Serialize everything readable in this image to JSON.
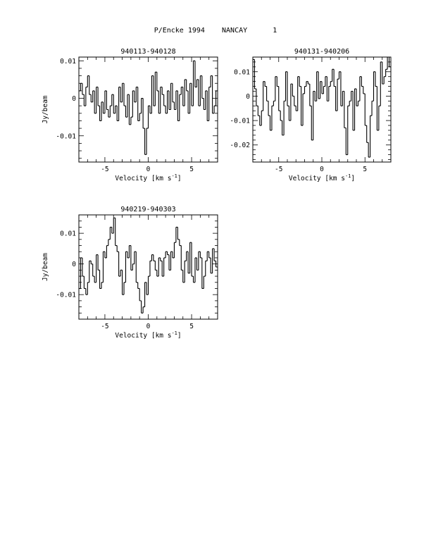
{
  "page": {
    "title": "P/Encke 1994    NANCAY      1"
  },
  "chart_data": [
    {
      "type": "line",
      "title": "940113-940128",
      "xlabel": "Velocity [km s",
      "xlabel_sup": "-1",
      "xlabel_end": "]",
      "ylabel": "Jy/beam",
      "xlim": [
        -8,
        8
      ],
      "ylim": [
        -0.017,
        0.011
      ],
      "x_ticks": [
        {
          "value": -5,
          "label": "-5"
        },
        {
          "value": 0,
          "label": "0"
        },
        {
          "value": 5,
          "label": "5"
        }
      ],
      "y_ticks": [
        {
          "value": 0.01,
          "label": "0.01"
        },
        {
          "value": 0,
          "label": "0"
        },
        {
          "value": -0.01,
          "label": "-0.01"
        }
      ],
      "x": [
        -8,
        -7.8,
        -7.6,
        -7.4,
        -7.2,
        -7,
        -6.8,
        -6.6,
        -6.4,
        -6.2,
        -6,
        -5.8,
        -5.6,
        -5.4,
        -5.2,
        -5,
        -4.8,
        -4.6,
        -4.4,
        -4.2,
        -4,
        -3.8,
        -3.6,
        -3.4,
        -3.2,
        -3,
        -2.8,
        -2.6,
        -2.4,
        -2.2,
        -2,
        -1.8,
        -1.6,
        -1.4,
        -1.2,
        -1,
        -0.8,
        -0.6,
        -0.4,
        -0.2,
        0,
        0.2,
        0.4,
        0.6,
        0.8,
        1,
        1.2,
        1.4,
        1.6,
        1.8,
        2,
        2.2,
        2.4,
        2.6,
        2.8,
        3,
        3.2,
        3.4,
        3.6,
        3.8,
        4,
        4.2,
        4.4,
        4.6,
        4.8,
        5,
        5.2,
        5.4,
        5.6,
        5.8,
        6,
        6.2,
        6.4,
        6.6,
        6.8,
        7,
        7.2,
        7.4,
        7.6,
        7.8
      ],
      "values": [
        0.002,
        0.004,
        0.001,
        -0.002,
        0.003,
        0.006,
        0.001,
        -0.001,
        0.002,
        -0.004,
        0.003,
        -0.002,
        -0.006,
        -0.001,
        -0.004,
        0.002,
        -0.003,
        -0.005,
        -0.002,
        0.001,
        -0.004,
        -0.002,
        -0.006,
        0.003,
        -0.001,
        0.004,
        -0.002,
        -0.005,
        0.001,
        -0.007,
        -0.005,
        0.002,
        -0.001,
        0.003,
        -0.006,
        -0.004,
        0,
        -0.008,
        -0.015,
        -0.008,
        -0.002,
        -0.004,
        0.006,
        -0.002,
        0.007,
        0.002,
        -0.004,
        0.003,
        0.001,
        -0.002,
        -0.004,
        0.002,
        -0.003,
        0.004,
        -0.001,
        -0.003,
        0.002,
        -0.006,
        0.001,
        0.003,
        -0.002,
        0.005,
        0.002,
        -0.004,
        0.004,
        -0.002,
        0.01,
        0.003,
        0.005,
        -0.002,
        0.006,
        0,
        -0.003,
        0.002,
        -0.006,
        0.003,
        0.006,
        -0.004,
        -0.002,
        0.002
      ]
    },
    {
      "type": "line",
      "title": "940131-940206",
      "xlabel": "Velocity [km s",
      "xlabel_sup": "-1",
      "xlabel_end": "]",
      "ylabel": "",
      "xlim": [
        -8,
        8
      ],
      "ylim": [
        -0.027,
        0.016
      ],
      "x_ticks": [
        {
          "value": -5,
          "label": "-5"
        },
        {
          "value": 0,
          "label": "0"
        },
        {
          "value": 5,
          "label": "5"
        }
      ],
      "y_ticks": [
        {
          "value": 0.01,
          "label": "0.01"
        },
        {
          "value": 0,
          "label": "0"
        },
        {
          "value": -0.01,
          "label": "-0.01"
        },
        {
          "value": -0.02,
          "label": "-0.02"
        }
      ],
      "x": [
        -8,
        -7.8,
        -7.6,
        -7.4,
        -7.2,
        -7,
        -6.8,
        -6.6,
        -6.4,
        -6.2,
        -6,
        -5.8,
        -5.6,
        -5.4,
        -5.2,
        -5,
        -4.8,
        -4.6,
        -4.4,
        -4.2,
        -4,
        -3.8,
        -3.6,
        -3.4,
        -3.2,
        -3,
        -2.8,
        -2.6,
        -2.4,
        -2.2,
        -2,
        -1.8,
        -1.6,
        -1.4,
        -1.2,
        -1,
        -0.8,
        -0.6,
        -0.4,
        -0.2,
        0,
        0.2,
        0.4,
        0.6,
        0.8,
        1,
        1.2,
        1.4,
        1.6,
        1.8,
        2,
        2.2,
        2.4,
        2.6,
        2.8,
        3,
        3.2,
        3.4,
        3.6,
        3.8,
        4,
        4.2,
        4.4,
        4.6,
        4.8,
        5,
        5.2,
        5.4,
        5.6,
        5.8,
        6,
        6.2,
        6.4,
        6.6,
        6.8,
        7,
        7.2,
        7.4,
        7.6,
        7.8
      ],
      "values": [
        0.015,
        0.003,
        -0.004,
        -0.008,
        -0.012,
        -0.006,
        0.006,
        0.004,
        -0.002,
        -0.008,
        -0.014,
        -0.004,
        -0.002,
        0.008,
        0.004,
        -0.006,
        -0.01,
        -0.016,
        -0.002,
        0.01,
        -0.004,
        -0.01,
        0.005,
        0,
        -0.004,
        -0.006,
        0.008,
        0.004,
        -0.012,
        0.001,
        0.004,
        0.006,
        0.005,
        -0.004,
        -0.018,
        0.002,
        -0.002,
        0.01,
        -0.001,
        0.006,
        0.001,
        0.004,
        0.008,
        -0.002,
        0.004,
        0.006,
        0.011,
        0.004,
        -0.006,
        0.007,
        0.01,
        -0.004,
        0.002,
        -0.013,
        -0.024,
        -0.004,
        -0.002,
        0.002,
        -0.014,
        0.003,
        -0.004,
        -0.002,
        0.008,
        0.004,
        0.001,
        -0.012,
        -0.019,
        -0.025,
        -0.008,
        -0.002,
        0.01,
        0.004,
        -0.014,
        -0.004,
        0.014,
        0.005,
        0.008,
        0.011,
        0.016,
        0.012
      ]
    },
    {
      "type": "line",
      "title": "940219-940303",
      "xlabel": "Velocity [km s",
      "xlabel_sup": "-1",
      "xlabel_end": "]",
      "ylabel": "Jy/beam",
      "xlim": [
        -8,
        8
      ],
      "ylim": [
        -0.018,
        0.016
      ],
      "x_ticks": [
        {
          "value": -5,
          "label": "-5"
        },
        {
          "value": 0,
          "label": "0"
        },
        {
          "value": 5,
          "label": "5"
        }
      ],
      "y_ticks": [
        {
          "value": 0.01,
          "label": "0.01"
        },
        {
          "value": 0,
          "label": "0"
        },
        {
          "value": -0.01,
          "label": "-0.01"
        }
      ],
      "x": [
        -8,
        -7.8,
        -7.6,
        -7.4,
        -7.2,
        -7,
        -6.8,
        -6.6,
        -6.4,
        -6.2,
        -6,
        -5.8,
        -5.6,
        -5.4,
        -5.2,
        -5,
        -4.8,
        -4.6,
        -4.4,
        -4.2,
        -4,
        -3.8,
        -3.6,
        -3.4,
        -3.2,
        -3,
        -2.8,
        -2.6,
        -2.4,
        -2.2,
        -2,
        -1.8,
        -1.6,
        -1.4,
        -1.2,
        -1,
        -0.8,
        -0.6,
        -0.4,
        -0.2,
        0,
        0.2,
        0.4,
        0.6,
        0.8,
        1,
        1.2,
        1.4,
        1.6,
        1.8,
        2,
        2.2,
        2.4,
        2.6,
        2.8,
        3,
        3.2,
        3.4,
        3.6,
        3.8,
        4,
        4.2,
        4.4,
        4.6,
        4.8,
        5,
        5.2,
        5.4,
        5.6,
        5.8,
        6,
        6.2,
        6.4,
        6.6,
        6.8,
        7,
        7.2,
        7.4,
        7.6,
        7.8
      ],
      "values": [
        -0.008,
        0.002,
        -0.004,
        -0.008,
        -0.01,
        -0.006,
        0.001,
        0,
        -0.004,
        -0.006,
        0.003,
        -0.002,
        -0.008,
        -0.006,
        0.004,
        0.002,
        0.006,
        0.008,
        0.012,
        0.01,
        0.015,
        0.006,
        0.004,
        -0.004,
        -0.002,
        -0.01,
        -0.006,
        0.004,
        0.002,
        0.006,
        -0.002,
        0,
        0.004,
        -0.006,
        -0.008,
        -0.012,
        -0.016,
        -0.014,
        -0.006,
        -0.01,
        -0.004,
        0.001,
        0.003,
        0.001,
        -0.002,
        -0.004,
        0.002,
        0.001,
        -0.004,
        0.002,
        0.004,
        0.003,
        -0.002,
        0.004,
        0.002,
        0.007,
        0.012,
        0.008,
        0.006,
        -0.002,
        -0.006,
        0.001,
        0.004,
        -0.003,
        0.007,
        -0.004,
        -0.006,
        0.002,
        -0.002,
        0.004,
        0.002,
        -0.008,
        -0.004,
        0.001,
        0.004,
        0.002,
        -0.003,
        0.005,
        0.001,
        -0.001
      ]
    }
  ]
}
